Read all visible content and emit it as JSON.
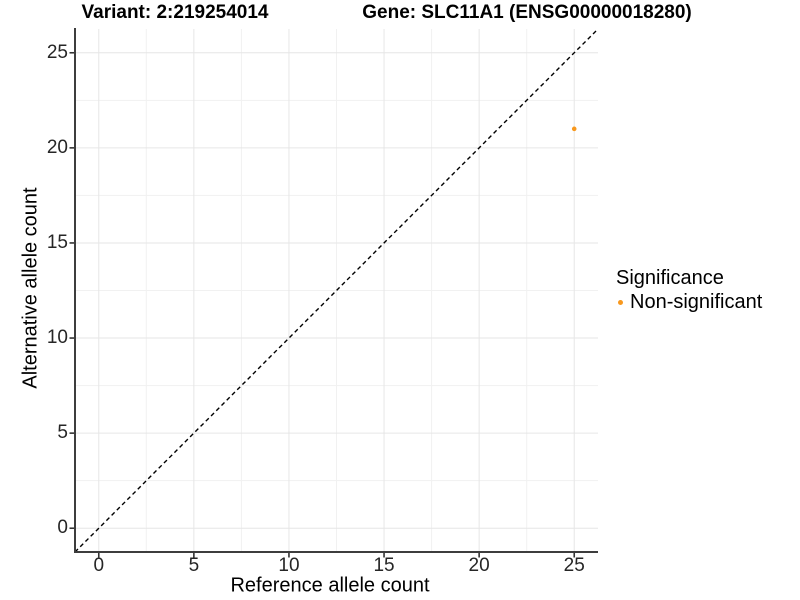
{
  "chart_data": {
    "type": "scatter",
    "title_left": "Variant: 2:219254014",
    "title_right": "Gene: SLC11A1 (ENSG00000018280)",
    "xlabel": "Reference allele count",
    "ylabel": "Alternative allele count",
    "xlim": [
      -1.25,
      26.25
    ],
    "ylim": [
      -1.25,
      26.25
    ],
    "x_ticks": [
      0,
      5,
      10,
      15,
      20,
      25
    ],
    "y_ticks": [
      0,
      5,
      10,
      15,
      20,
      25
    ],
    "grid": {
      "major": true,
      "minor": true,
      "minor_positions": [
        2.5,
        7.5,
        12.5,
        17.5,
        22.5
      ]
    },
    "reference_line": {
      "kind": "identity y=x",
      "style": "dashed",
      "color": "#000000",
      "from": [
        -1.25,
        -1.25
      ],
      "to": [
        26.25,
        26.25
      ]
    },
    "series": [
      {
        "name": "Non-significant",
        "color": "#F8981D",
        "points": [
          [
            25,
            21
          ]
        ]
      }
    ],
    "legend": {
      "title": "Significance",
      "position": "right",
      "entries": [
        {
          "label": "Non-significant",
          "color": "#F8981D"
        }
      ]
    }
  },
  "colors": {
    "background": "#FFFFFF",
    "axis_line": "#3D3D3D",
    "tick_mark": "#333333",
    "grid_major": "#E6E6E6",
    "grid_minor": "#F1F1F1",
    "text": "#000000",
    "tick_label": "#262626"
  }
}
